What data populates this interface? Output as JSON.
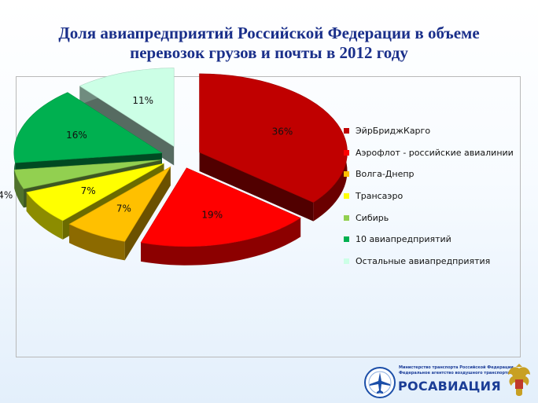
{
  "title_lines": [
    "Доля авиапредприятий Российской Федерации в объеме",
    "перевозок грузов и почты в 2012 году"
  ],
  "chart_data": {
    "type": "pie",
    "style": "3d-exploded",
    "legend_position": "right",
    "slices": [
      {
        "label": "ЭйрБриджКарго",
        "value": 36,
        "display": "36%",
        "color": "#c00000"
      },
      {
        "label": "Аэрофлот - российские авиалинии",
        "value": 19,
        "display": "19%",
        "color": "#ff0000"
      },
      {
        "label": "Волга-Днепр",
        "value": 7,
        "display": "7%",
        "color": "#ffc000"
      },
      {
        "label": "Трансаэро",
        "value": 7,
        "display": "7%",
        "color": "#ffff00"
      },
      {
        "label": "Сибирь",
        "value": 4,
        "display": "4%",
        "color": "#92d050"
      },
      {
        "label": "10 авиапредприятий",
        "value": 16,
        "display": "16%",
        "color": "#00b050"
      },
      {
        "label": "Остальные авиапредприятия",
        "value": 11,
        "display": "11%",
        "color": "#ccffe6"
      }
    ]
  },
  "footer": {
    "ministry_lines": [
      "Министерство транспорта Российской Федерации",
      "Федеральное агентство воздушного транспорта"
    ],
    "brand": "РОСАВИАЦИЯ",
    "emblem_icon": "double-headed-eagle-emblem-icon",
    "logo_icon": "rosaviatsia-airplane-logo-icon"
  }
}
